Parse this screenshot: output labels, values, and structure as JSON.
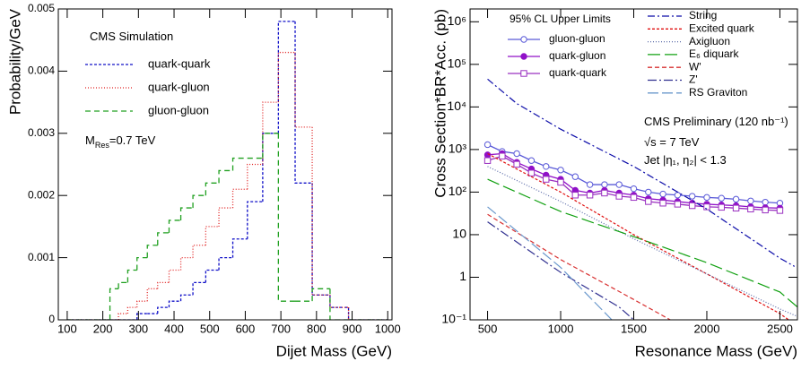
{
  "chart_data": [
    {
      "type": "histogram",
      "xlabel": "Dijet Mass (GeV)",
      "ylabel": "Probability/GeV",
      "xlim": [
        75,
        1012
      ],
      "xticks": [
        100,
        200,
        300,
        400,
        500,
        600,
        700,
        800,
        900,
        1000
      ],
      "ylim": [
        0,
        0.005
      ],
      "yticks": [
        0,
        0.001,
        0.002,
        0.003,
        0.004,
        0.005
      ],
      "bins": [
        100,
        220,
        244,
        270,
        296,
        325,
        354,
        386,
        419,
        453,
        489,
        526,
        565,
        606,
        649,
        693,
        740,
        788,
        838,
        890,
        944,
        1000
      ],
      "annotations": [
        {
          "parts": [
            "CMS Simulation"
          ]
        },
        {
          "parts": [
            "M",
            "Res",
            "=0.7 TeV"
          ]
        }
      ],
      "series": [
        {
          "name": "quark-quark",
          "color": "#1010c8",
          "dash": "3,2",
          "values": [
            0,
            0,
            0,
            0,
            0.0001,
            0.0001,
            0.0002,
            0.0003,
            0.0004,
            0.0006,
            0.0008,
            0.001,
            0.0013,
            0.0019,
            0.003,
            0.0048,
            0.0022,
            0.0004,
            0.0002,
            0,
            0
          ]
        },
        {
          "name": "quark-gluon",
          "color": "#e02020",
          "dash": "1,2",
          "values": [
            0,
            0,
            0.0001,
            0.0002,
            0.0003,
            0.0005,
            0.0006,
            0.0008,
            0.001,
            0.0012,
            0.0015,
            0.0018,
            0.0021,
            0.0025,
            0.0035,
            0.0043,
            0.0031,
            0.0004,
            0.0002,
            0,
            0
          ]
        },
        {
          "name": "gluon-gluon",
          "color": "#20a020",
          "dash": "6,4",
          "values": [
            0,
            0.0005,
            0.0006,
            0.0008,
            0.001,
            0.0012,
            0.0014,
            0.0016,
            0.0018,
            0.002,
            0.0022,
            0.0024,
            0.0026,
            0.0026,
            0.003,
            0.0003,
            0.0003,
            0.0005,
            0,
            0,
            0
          ]
        }
      ]
    },
    {
      "type": "line",
      "xlabel": "Resonance Mass (GeV)",
      "ylabel": "Cross Section*BR*Acc. (pb)",
      "log_y": true,
      "xlim": [
        380,
        2620
      ],
      "xticks": [
        500,
        1000,
        1500,
        2000,
        2500
      ],
      "ylim": [
        0.1,
        2000000
      ],
      "yticks": [
        {
          "value": 0.1,
          "label": "10⁻¹"
        },
        1,
        10,
        {
          "value": 100,
          "label": "10²"
        },
        {
          "value": 1000,
          "label": "10³"
        },
        {
          "value": 10000,
          "label": "10⁴"
        },
        {
          "value": 100000,
          "label": "10⁵"
        },
        {
          "value": 1000000,
          "label": "10⁶"
        }
      ],
      "legend_title": "95% CL Upper Limits",
      "annotations": [
        {
          "parts": [
            "CMS Preliminary (120 nb⁻¹)"
          ]
        },
        {
          "parts": [
            "√s = 7 TeV"
          ]
        },
        {
          "parts": [
            "Jet |η₁, η₂| < 1.3"
          ]
        }
      ],
      "series": [
        {
          "name": "gluon-gluon",
          "color": "#5a5ad8",
          "marker": "circle-open",
          "x": [
            500,
            600,
            700,
            800,
            900,
            1000,
            1100,
            1200,
            1300,
            1400,
            1500,
            1600,
            1700,
            1800,
            1900,
            2000,
            2100,
            2200,
            2300,
            2400,
            2500
          ],
          "values": [
            1300,
            900,
            800,
            550,
            400,
            330,
            230,
            150,
            150,
            150,
            120,
            100,
            90,
            85,
            80,
            75,
            72,
            68,
            62,
            58,
            55
          ]
        },
        {
          "name": "quark-gluon",
          "color": "#9010c8",
          "marker": "circle-filled",
          "x": [
            500,
            600,
            700,
            800,
            900,
            1000,
            1100,
            1200,
            1300,
            1400,
            1500,
            1600,
            1700,
            1800,
            1900,
            2000,
            2100,
            2200,
            2300,
            2400,
            2500
          ],
          "values": [
            750,
            800,
            500,
            350,
            250,
            200,
            110,
            95,
            110,
            95,
            85,
            70,
            65,
            60,
            55,
            52,
            50,
            48,
            45,
            43,
            42
          ]
        },
        {
          "name": "quark-quark",
          "color": "#9a30c0",
          "marker": "square-open",
          "x": [
            500,
            600,
            700,
            800,
            900,
            1000,
            1100,
            1200,
            1300,
            1400,
            1500,
            1600,
            1700,
            1800,
            1900,
            2000,
            2100,
            2200,
            2300,
            2400,
            2500
          ],
          "values": [
            550,
            700,
            450,
            280,
            200,
            170,
            85,
            85,
            95,
            80,
            75,
            60,
            55,
            52,
            48,
            45,
            44,
            42,
            40,
            38,
            37
          ]
        },
        {
          "name": "String",
          "color": "#0a0aa8",
          "dash": "8,3,2,3",
          "x": [
            500,
            700,
            1000,
            1500,
            2000,
            2500,
            2600
          ],
          "values": [
            45000,
            12000,
            3000,
            400,
            40,
            2.8,
            1.8
          ]
        },
        {
          "name": "Excited quark",
          "color": "#e01010",
          "dash": "3,2",
          "x": [
            500,
            1000,
            1500,
            2000,
            2500,
            2560
          ],
          "values": [
            800,
            100,
            10,
            1.2,
            0.14,
            0.1
          ]
        },
        {
          "name": "Axigluon",
          "color": "#5a6aa8",
          "dash": "1,2",
          "x": [
            500,
            1000,
            1500,
            2000,
            2500,
            2620
          ],
          "values": [
            400,
            60,
            8,
            1.2,
            0.18,
            0.12
          ]
        },
        {
          "name": "E₆ diquark",
          "color": "#10a010",
          "dash": "14,5",
          "x": [
            500,
            1000,
            1500,
            2000,
            2500,
            2620
          ],
          "values": [
            200,
            35,
            9,
            2.2,
            0.45,
            0.2
          ]
        },
        {
          "name": "W'",
          "color": "#d83030",
          "dash": "5,3",
          "x": [
            500,
            1000,
            1500,
            1750
          ],
          "values": [
            30,
            2.6,
            0.3,
            0.1
          ]
        },
        {
          "name": "Z'",
          "color": "#303090",
          "dash": "10,3,2,3",
          "x": [
            500,
            1000,
            1400,
            1500
          ],
          "values": [
            20,
            1.3,
            0.2,
            0.1
          ]
        },
        {
          "name": "RS Graviton",
          "color": "#6a98cc",
          "dash": "12,4",
          "x": [
            500,
            1000,
            1350
          ],
          "values": [
            45,
            1.7,
            0.1
          ]
        }
      ]
    }
  ]
}
